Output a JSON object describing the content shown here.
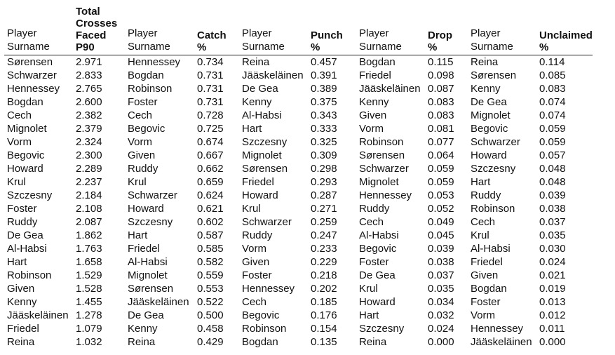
{
  "headers": [
    "Player\nSurname",
    "Total\nCrosses\nFaced\nP90",
    "Player\nSurname",
    "Catch\n%",
    "Player\nSurname",
    "Punch\n%",
    "Player\nSurname",
    "Drop\n%",
    "Player\nSurname",
    "Unclaimed\n%"
  ],
  "rows": [
    [
      "Sørensen",
      "2.971",
      "Hennessey",
      "0.734",
      "Reina",
      "0.457",
      "Bogdan",
      "0.115",
      "Reina",
      "0.114"
    ],
    [
      "Schwarzer",
      "2.833",
      "Bogdan",
      "0.731",
      "Jääskeläinen",
      "0.391",
      "Friedel",
      "0.098",
      "Sørensen",
      "0.085"
    ],
    [
      "Hennessey",
      "2.765",
      "Robinson",
      "0.731",
      "De Gea",
      "0.389",
      "Jääskeläinen",
      "0.087",
      "Kenny",
      "0.083"
    ],
    [
      "Bogdan",
      "2.600",
      "Foster",
      "0.731",
      "Kenny",
      "0.375",
      "Kenny",
      "0.083",
      "De Gea",
      "0.074"
    ],
    [
      "Cech",
      "2.382",
      "Cech",
      "0.728",
      "Al-Habsi",
      "0.343",
      "Given",
      "0.083",
      "Mignolet",
      "0.074"
    ],
    [
      "Mignolet",
      "2.379",
      "Begovic",
      "0.725",
      "Hart",
      "0.333",
      "Vorm",
      "0.081",
      "Begovic",
      "0.059"
    ],
    [
      "Vorm",
      "2.324",
      "Vorm",
      "0.674",
      "Szczesny",
      "0.325",
      "Robinson",
      "0.077",
      "Schwarzer",
      "0.059"
    ],
    [
      "Begovic",
      "2.300",
      "Given",
      "0.667",
      "Mignolet",
      "0.309",
      "Sørensen",
      "0.064",
      "Howard",
      "0.057"
    ],
    [
      "Howard",
      "2.289",
      "Ruddy",
      "0.662",
      "Sørensen",
      "0.298",
      "Schwarzer",
      "0.059",
      "Szczesny",
      "0.048"
    ],
    [
      "Krul",
      "2.237",
      "Krul",
      "0.659",
      "Friedel",
      "0.293",
      "Mignolet",
      "0.059",
      "Hart",
      "0.048"
    ],
    [
      "Szczesny",
      "2.184",
      "Schwarzer",
      "0.624",
      "Howard",
      "0.287",
      "Hennessey",
      "0.053",
      "Ruddy",
      "0.039"
    ],
    [
      "Foster",
      "2.108",
      "Howard",
      "0.621",
      "Krul",
      "0.271",
      "Ruddy",
      "0.052",
      "Robinson",
      "0.038"
    ],
    [
      "Ruddy",
      "2.087",
      "Szczesny",
      "0.602",
      "Schwarzer",
      "0.259",
      "Cech",
      "0.049",
      "Cech",
      "0.037"
    ],
    [
      "De Gea",
      "1.862",
      "Hart",
      "0.587",
      "Ruddy",
      "0.247",
      "Al-Habsi",
      "0.045",
      "Krul",
      "0.035"
    ],
    [
      "Al-Habsi",
      "1.763",
      "Friedel",
      "0.585",
      "Vorm",
      "0.233",
      "Begovic",
      "0.039",
      "Al-Habsi",
      "0.030"
    ],
    [
      "Hart",
      "1.658",
      "Al-Habsi",
      "0.582",
      "Given",
      "0.229",
      "Foster",
      "0.038",
      "Friedel",
      "0.024"
    ],
    [
      "Robinson",
      "1.529",
      "Mignolet",
      "0.559",
      "Foster",
      "0.218",
      "De Gea",
      "0.037",
      "Given",
      "0.021"
    ],
    [
      "Given",
      "1.528",
      "Sørensen",
      "0.553",
      "Hennessey",
      "0.202",
      "Krul",
      "0.035",
      "Bogdan",
      "0.019"
    ],
    [
      "Kenny",
      "1.455",
      "Jääskeläinen",
      "0.522",
      "Cech",
      "0.185",
      "Howard",
      "0.034",
      "Foster",
      "0.013"
    ],
    [
      "Jääskeläinen",
      "1.278",
      "De Gea",
      "0.500",
      "Begovic",
      "0.176",
      "Hart",
      "0.032",
      "Vorm",
      "0.012"
    ],
    [
      "Friedel",
      "1.079",
      "Kenny",
      "0.458",
      "Robinson",
      "0.154",
      "Szczesny",
      "0.024",
      "Hennessey",
      "0.011"
    ],
    [
      "Reina",
      "1.032",
      "Reina",
      "0.429",
      "Bogdan",
      "0.135",
      "Reina",
      "0.000",
      "Jääskeläinen",
      "0.000"
    ]
  ]
}
